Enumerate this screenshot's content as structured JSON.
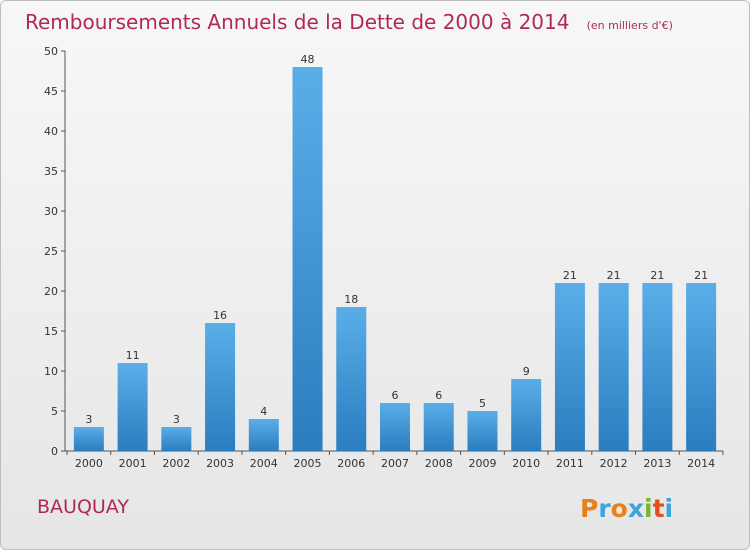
{
  "commune": "BAUQUAY",
  "brand": {
    "letters": [
      "P",
      "r",
      "o",
      "x",
      "i",
      "t",
      "i"
    ],
    "colors": [
      "#e8811c",
      "#3da5d9",
      "#e8811c",
      "#3da5d9",
      "#76b82a",
      "#e84e1b",
      "#3da5d9"
    ]
  },
  "colors": {
    "title": "#b0285a",
    "bar_light": "#5aaee8",
    "bar_dark": "#2a7dbf"
  },
  "chart_data": {
    "type": "bar",
    "title": "Remboursements Annuels de la Dette de 2000 à 2014",
    "subtitle": "(en milliers d'€)",
    "xlabel": "",
    "ylabel": "",
    "categories": [
      "2000",
      "2001",
      "2002",
      "2003",
      "2004",
      "2005",
      "2006",
      "2007",
      "2008",
      "2009",
      "2010",
      "2011",
      "2012",
      "2013",
      "2014"
    ],
    "values": [
      3,
      11,
      3,
      16,
      4,
      48,
      18,
      6,
      6,
      5,
      9,
      21,
      21,
      21,
      21
    ],
    "ylim": [
      0,
      50
    ],
    "yticks": [
      0,
      5,
      10,
      15,
      20,
      25,
      30,
      35,
      40,
      45,
      50
    ],
    "grid": false,
    "legend": "none"
  }
}
